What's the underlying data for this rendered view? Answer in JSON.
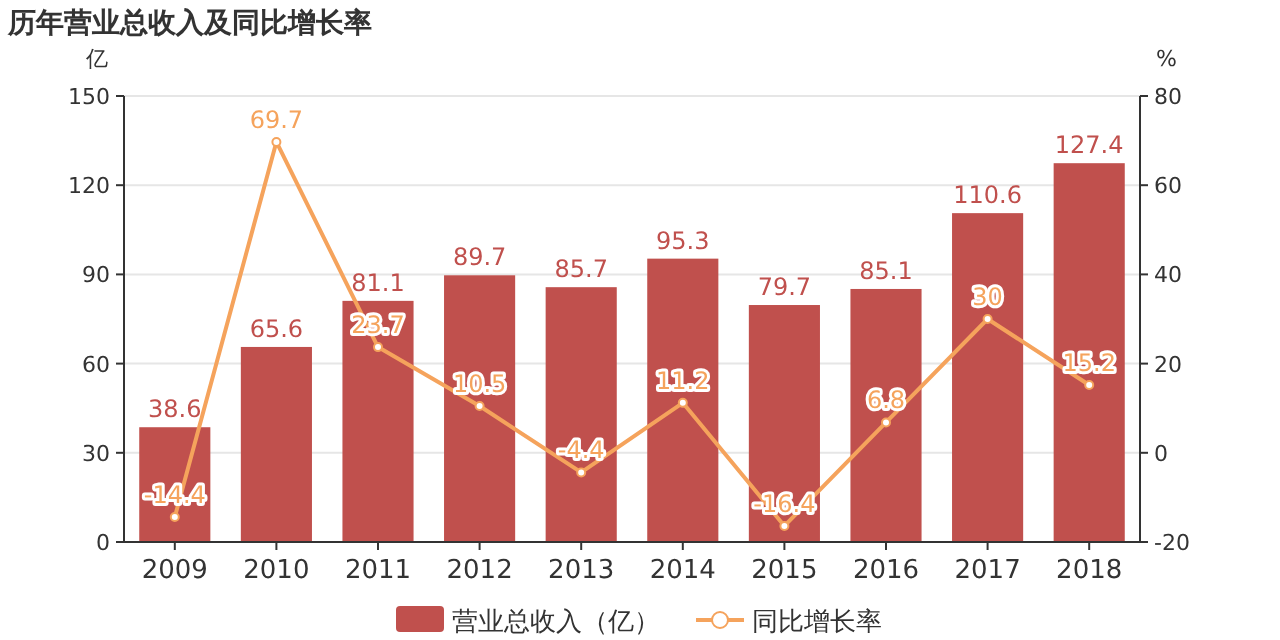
{
  "chart_data": {
    "type": "bar",
    "title": "历年营业总收入及同比增长率",
    "ylabel": "亿",
    "y2label": "%",
    "categories": [
      "2009",
      "2010",
      "2011",
      "2012",
      "2013",
      "2014",
      "2015",
      "2016",
      "2017",
      "2018"
    ],
    "series": [
      {
        "name": "营业总收入（亿）",
        "color": "#c0504d",
        "values": [
          38.6,
          65.6,
          81.1,
          89.7,
          85.7,
          95.3,
          79.7,
          85.1,
          110.6,
          127.4
        ]
      },
      {
        "name": "同比增长率",
        "type": "line",
        "axis": "y2",
        "color": "#f5a35c",
        "marker": "circle",
        "values": [
          -14.4,
          69.7,
          23.7,
          10.5,
          -4.4,
          11.2,
          -16.4,
          6.8,
          30,
          15.2
        ]
      }
    ],
    "ylim": [
      0,
      150
    ],
    "yticks": [
      0,
      30,
      60,
      90,
      120,
      150
    ],
    "y2lim": [
      -20,
      80
    ],
    "y2ticks": [
      -20,
      0,
      20,
      40,
      60,
      80
    ],
    "grid": "y",
    "legend": "bottom",
    "data_labels": true
  }
}
